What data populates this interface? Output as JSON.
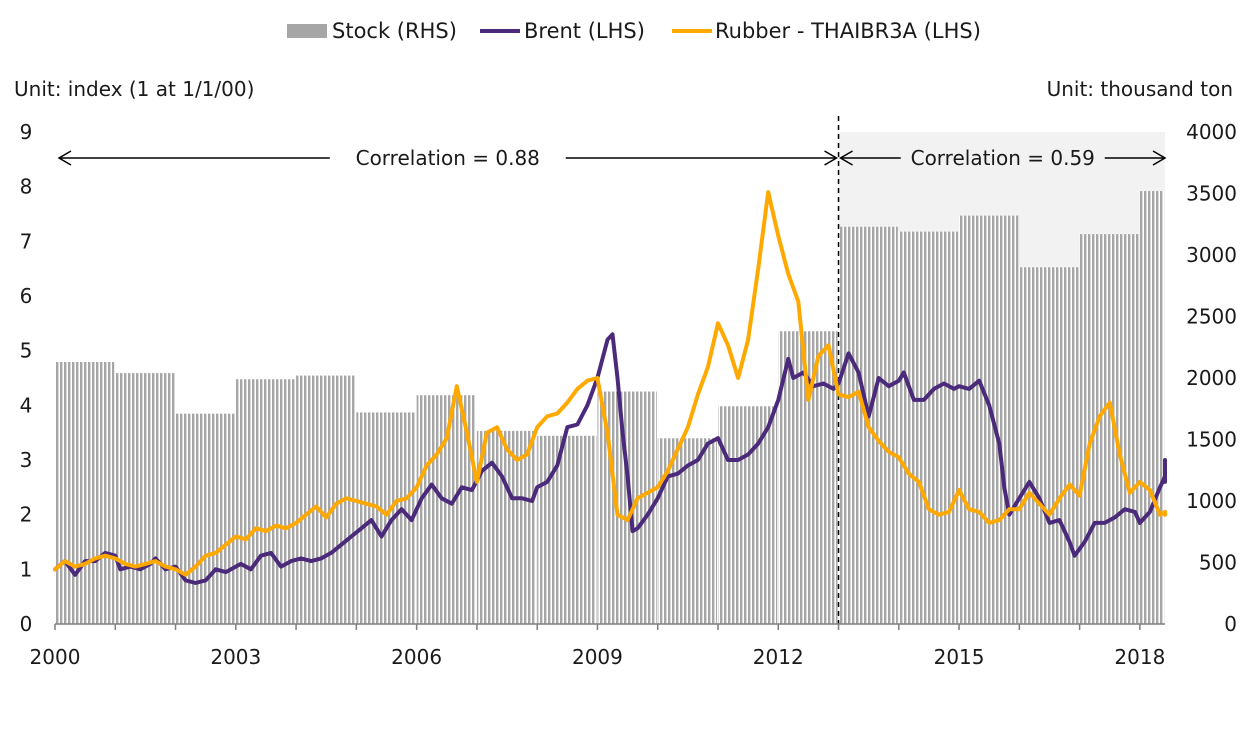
{
  "chart_data": {
    "type": "bar+line",
    "left_unit": "Unit: index (1 at 1/1/00)",
    "right_unit": "Unit: thousand ton",
    "x_ticks": [
      "2000",
      "2003",
      "2006",
      "2009",
      "2012",
      "2015",
      "2018"
    ],
    "xlim": [
      "2000-01",
      "2018-06"
    ],
    "ylim_left": [
      0,
      9
    ],
    "ylim_right": [
      0,
      4000
    ],
    "yticks_left": [
      "0",
      "1",
      "2",
      "3",
      "4",
      "5",
      "6",
      "7",
      "8",
      "9"
    ],
    "yticks_right": [
      "0",
      "500",
      "1000",
      "1500",
      "2000",
      "2500",
      "3000",
      "3500",
      "4000"
    ],
    "legend_position": "top",
    "legend": [
      {
        "name": "Stock (RHS)",
        "kind": "bar",
        "color": "#a6a6a6"
      },
      {
        "name": "Brent (LHS)",
        "kind": "line",
        "color": "#4b2a7b"
      },
      {
        "name": "Rubber - THAIBR3A (LHS)",
        "kind": "line",
        "color": "#ffa900"
      }
    ],
    "annotations": [
      {
        "text": "Correlation = 0.88",
        "from": "2000-01",
        "to": "2013-01"
      },
      {
        "text": "Correlation = 0.59",
        "from": "2013-01",
        "to": "2018-06"
      }
    ],
    "divider_x": "2013-01",
    "shaded_region": [
      "2013-01",
      "2018-06"
    ],
    "stock_series": {
      "name": "Stock (RHS)",
      "axis": "right",
      "periods": [
        {
          "from": "2000-01",
          "to": "2000-12",
          "value": 2130
        },
        {
          "from": "2001-01",
          "to": "2001-12",
          "value": 2040
        },
        {
          "from": "2002-01",
          "to": "2002-12",
          "value": 1710
        },
        {
          "from": "2003-01",
          "to": "2003-12",
          "value": 1990
        },
        {
          "from": "2004-01",
          "to": "2004-12",
          "value": 2020
        },
        {
          "from": "2005-01",
          "to": "2005-12",
          "value": 1720
        },
        {
          "from": "2006-01",
          "to": "2006-12",
          "value": 1860
        },
        {
          "from": "2007-01",
          "to": "2007-12",
          "value": 1570
        },
        {
          "from": "2008-01",
          "to": "2008-12",
          "value": 1530
        },
        {
          "from": "2009-01",
          "to": "2009-12",
          "value": 1890
        },
        {
          "from": "2010-01",
          "to": "2010-12",
          "value": 1510
        },
        {
          "from": "2011-01",
          "to": "2011-12",
          "value": 1770
        },
        {
          "from": "2012-01",
          "to": "2012-12",
          "value": 2380
        },
        {
          "from": "2013-01",
          "to": "2013-12",
          "value": 3230
        },
        {
          "from": "2014-01",
          "to": "2014-12",
          "value": 3190
        },
        {
          "from": "2015-01",
          "to": "2015-12",
          "value": 3320
        },
        {
          "from": "2016-01",
          "to": "2016-12",
          "value": 2900
        },
        {
          "from": "2017-01",
          "to": "2017-12",
          "value": 3170
        },
        {
          "from": "2018-01",
          "to": "2018-06",
          "value": 3520
        }
      ]
    },
    "series": [
      {
        "name": "Brent (LHS)",
        "axis": "left",
        "points": [
          [
            "2000-01",
            1.0
          ],
          [
            "2000-03",
            1.15
          ],
          [
            "2000-05",
            0.9
          ],
          [
            "2000-07",
            1.15
          ],
          [
            "2000-09",
            1.15
          ],
          [
            "2000-11",
            1.3
          ],
          [
            "2001-01",
            1.25
          ],
          [
            "2001-02",
            1.0
          ],
          [
            "2001-04",
            1.05
          ],
          [
            "2001-06",
            1.0
          ],
          [
            "2001-08",
            1.1
          ],
          [
            "2001-09",
            1.2
          ],
          [
            "2001-11",
            1.0
          ],
          [
            "2002-01",
            1.05
          ],
          [
            "2002-03",
            0.8
          ],
          [
            "2002-05",
            0.75
          ],
          [
            "2002-07",
            0.8
          ],
          [
            "2002-09",
            1.0
          ],
          [
            "2002-11",
            0.95
          ],
          [
            "2003-01",
            1.05
          ],
          [
            "2003-02",
            1.1
          ],
          [
            "2003-04",
            1.0
          ],
          [
            "2003-06",
            1.25
          ],
          [
            "2003-08",
            1.3
          ],
          [
            "2003-10",
            1.05
          ],
          [
            "2003-12",
            1.15
          ],
          [
            "2004-02",
            1.2
          ],
          [
            "2004-04",
            1.15
          ],
          [
            "2004-06",
            1.2
          ],
          [
            "2004-08",
            1.3
          ],
          [
            "2004-10",
            1.45
          ],
          [
            "2004-12",
            1.6
          ],
          [
            "2005-02",
            1.75
          ],
          [
            "2005-04",
            1.9
          ],
          [
            "2005-06",
            1.6
          ],
          [
            "2005-08",
            1.9
          ],
          [
            "2005-10",
            2.1
          ],
          [
            "2005-12",
            1.9
          ],
          [
            "2006-02",
            2.3
          ],
          [
            "2006-04",
            2.55
          ],
          [
            "2006-06",
            2.3
          ],
          [
            "2006-08",
            2.2
          ],
          [
            "2006-10",
            2.5
          ],
          [
            "2006-12",
            2.45
          ],
          [
            "2007-02",
            2.8
          ],
          [
            "2007-04",
            2.95
          ],
          [
            "2007-06",
            2.7
          ],
          [
            "2007-08",
            2.3
          ],
          [
            "2007-10",
            2.3
          ],
          [
            "2007-12",
            2.25
          ],
          [
            "2008-01",
            2.5
          ],
          [
            "2008-03",
            2.6
          ],
          [
            "2008-05",
            2.9
          ],
          [
            "2008-07",
            3.6
          ],
          [
            "2008-09",
            3.65
          ],
          [
            "2008-11",
            4.0
          ],
          [
            "2009-01",
            4.5
          ],
          [
            "2009-03",
            5.2
          ],
          [
            "2009-04",
            5.3
          ],
          [
            "2009-05",
            4.5
          ],
          [
            "2009-06",
            3.5
          ],
          [
            "2009-07",
            2.7
          ],
          [
            "2009-08",
            1.7
          ],
          [
            "2009-09",
            1.75
          ],
          [
            "2009-11",
            2.0
          ],
          [
            "2010-01",
            2.3
          ],
          [
            "2010-03",
            2.7
          ],
          [
            "2010-05",
            2.75
          ],
          [
            "2010-07",
            2.9
          ],
          [
            "2010-09",
            3.0
          ],
          [
            "2010-11",
            3.3
          ],
          [
            "2011-01",
            3.4
          ],
          [
            "2011-03",
            3.0
          ],
          [
            "2011-05",
            3.0
          ],
          [
            "2011-07",
            3.1
          ],
          [
            "2011-09",
            3.3
          ],
          [
            "2011-11",
            3.6
          ],
          [
            "2012-01",
            4.1
          ],
          [
            "2012-03",
            4.85
          ],
          [
            "2012-04",
            4.5
          ],
          [
            "2012-06",
            4.6
          ],
          [
            "2012-08",
            4.35
          ],
          [
            "2012-10",
            4.4
          ],
          [
            "2012-12",
            4.3
          ],
          [
            "2013-01",
            4.4
          ],
          [
            "2013-03",
            4.95
          ],
          [
            "2013-05",
            4.6
          ],
          [
            "2013-07",
            3.8
          ],
          [
            "2013-09",
            4.5
          ],
          [
            "2013-11",
            4.35
          ],
          [
            "2014-01",
            4.45
          ],
          [
            "2014-02",
            4.6
          ],
          [
            "2014-04",
            4.1
          ],
          [
            "2014-06",
            4.1
          ],
          [
            "2014-08",
            4.3
          ],
          [
            "2014-10",
            4.4
          ],
          [
            "2014-12",
            4.3
          ],
          [
            "2015-01",
            4.35
          ],
          [
            "2015-03",
            4.3
          ],
          [
            "2015-05",
            4.45
          ],
          [
            "2015-07",
            4.0
          ],
          [
            "2015-09",
            3.3
          ],
          [
            "2015-10",
            2.5
          ],
          [
            "2015-11",
            2.0
          ],
          [
            "2016-01",
            2.3
          ],
          [
            "2016-03",
            2.6
          ],
          [
            "2016-05",
            2.3
          ],
          [
            "2016-07",
            1.85
          ],
          [
            "2016-09",
            1.9
          ],
          [
            "2016-11",
            1.5
          ],
          [
            "2016-12",
            1.25
          ],
          [
            "2017-02",
            1.5
          ],
          [
            "2017-04",
            1.85
          ],
          [
            "2017-06",
            1.85
          ],
          [
            "2017-08",
            1.95
          ],
          [
            "2017-10",
            2.1
          ],
          [
            "2017-12",
            2.05
          ],
          [
            "2018-01",
            1.85
          ],
          [
            "2018-03",
            2.05
          ],
          [
            "2018-05",
            2.5
          ],
          [
            "2018-07",
            2.7
          ],
          [
            "2018-09",
            2.6
          ],
          [
            "2018-10",
            3.0
          ],
          [
            "2018-12",
            3.0
          ]
        ]
      },
      {
        "name": "Rubber - THAIBR3A (LHS)",
        "axis": "left",
        "points": [
          [
            "2000-01",
            1.0
          ],
          [
            "2000-03",
            1.15
          ],
          [
            "2000-05",
            1.05
          ],
          [
            "2000-07",
            1.1
          ],
          [
            "2000-09",
            1.2
          ],
          [
            "2000-11",
            1.25
          ],
          [
            "2001-01",
            1.2
          ],
          [
            "2001-03",
            1.1
          ],
          [
            "2001-05",
            1.05
          ],
          [
            "2001-07",
            1.1
          ],
          [
            "2001-09",
            1.15
          ],
          [
            "2001-11",
            1.05
          ],
          [
            "2002-01",
            1.0
          ],
          [
            "2002-03",
            0.9
          ],
          [
            "2002-05",
            1.05
          ],
          [
            "2002-07",
            1.25
          ],
          [
            "2002-09",
            1.3
          ],
          [
            "2002-11",
            1.45
          ],
          [
            "2003-01",
            1.6
          ],
          [
            "2003-03",
            1.55
          ],
          [
            "2003-05",
            1.75
          ],
          [
            "2003-07",
            1.7
          ],
          [
            "2003-09",
            1.8
          ],
          [
            "2003-11",
            1.75
          ],
          [
            "2004-01",
            1.85
          ],
          [
            "2004-03",
            2.0
          ],
          [
            "2004-05",
            2.15
          ],
          [
            "2004-07",
            1.95
          ],
          [
            "2004-09",
            2.2
          ],
          [
            "2004-11",
            2.3
          ],
          [
            "2005-01",
            2.25
          ],
          [
            "2005-03",
            2.2
          ],
          [
            "2005-05",
            2.15
          ],
          [
            "2005-07",
            2.0
          ],
          [
            "2005-09",
            2.25
          ],
          [
            "2005-11",
            2.3
          ],
          [
            "2006-01",
            2.5
          ],
          [
            "2006-03",
            2.9
          ],
          [
            "2006-05",
            3.1
          ],
          [
            "2006-07",
            3.4
          ],
          [
            "2006-09",
            4.35
          ],
          [
            "2006-11",
            3.5
          ],
          [
            "2007-01",
            2.6
          ],
          [
            "2007-03",
            3.5
          ],
          [
            "2007-05",
            3.6
          ],
          [
            "2007-07",
            3.2
          ],
          [
            "2007-09",
            3.0
          ],
          [
            "2007-11",
            3.1
          ],
          [
            "2008-01",
            3.6
          ],
          [
            "2008-03",
            3.8
          ],
          [
            "2008-05",
            3.85
          ],
          [
            "2008-07",
            4.05
          ],
          [
            "2008-09",
            4.3
          ],
          [
            "2008-11",
            4.45
          ],
          [
            "2009-01",
            4.5
          ],
          [
            "2009-03",
            3.5
          ],
          [
            "2009-05",
            2.0
          ],
          [
            "2009-07",
            1.9
          ],
          [
            "2009-09",
            2.3
          ],
          [
            "2009-11",
            2.4
          ],
          [
            "2010-01",
            2.5
          ],
          [
            "2010-03",
            2.8
          ],
          [
            "2010-05",
            3.2
          ],
          [
            "2010-07",
            3.6
          ],
          [
            "2010-09",
            4.2
          ],
          [
            "2010-11",
            4.7
          ],
          [
            "2011-01",
            5.5
          ],
          [
            "2011-03",
            5.1
          ],
          [
            "2011-05",
            4.5
          ],
          [
            "2011-07",
            5.2
          ],
          [
            "2011-09",
            6.5
          ],
          [
            "2011-11",
            7.9
          ],
          [
            "2012-01",
            7.1
          ],
          [
            "2012-03",
            6.4
          ],
          [
            "2012-05",
            5.9
          ],
          [
            "2012-07",
            4.1
          ],
          [
            "2012-09",
            4.9
          ],
          [
            "2012-11",
            5.1
          ],
          [
            "2013-01",
            4.2
          ],
          [
            "2013-03",
            4.15
          ],
          [
            "2013-05",
            4.25
          ],
          [
            "2013-07",
            3.6
          ],
          [
            "2013-09",
            3.35
          ],
          [
            "2013-11",
            3.15
          ],
          [
            "2014-01",
            3.05
          ],
          [
            "2014-03",
            2.75
          ],
          [
            "2014-05",
            2.6
          ],
          [
            "2014-07",
            2.1
          ],
          [
            "2014-09",
            2.0
          ],
          [
            "2014-11",
            2.05
          ],
          [
            "2015-01",
            2.45
          ],
          [
            "2015-03",
            2.1
          ],
          [
            "2015-05",
            2.05
          ],
          [
            "2015-07",
            1.85
          ],
          [
            "2015-09",
            1.9
          ],
          [
            "2015-11",
            2.1
          ],
          [
            "2016-01",
            2.1
          ],
          [
            "2016-03",
            2.4
          ],
          [
            "2016-05",
            2.2
          ],
          [
            "2016-07",
            2.0
          ],
          [
            "2016-09",
            2.3
          ],
          [
            "2016-11",
            2.55
          ],
          [
            "2017-01",
            2.35
          ],
          [
            "2017-03",
            3.3
          ],
          [
            "2017-05",
            3.8
          ],
          [
            "2017-07",
            4.05
          ],
          [
            "2017-09",
            3.1
          ],
          [
            "2017-11",
            2.4
          ],
          [
            "2018-01",
            2.6
          ],
          [
            "2018-03",
            2.45
          ],
          [
            "2018-05",
            2.0
          ],
          [
            "2018-07",
            2.05
          ],
          [
            "2018-09",
            2.05
          ],
          [
            "2018-11",
            2.05
          ],
          [
            "2018-12",
            2.0
          ]
        ]
      }
    ]
  }
}
